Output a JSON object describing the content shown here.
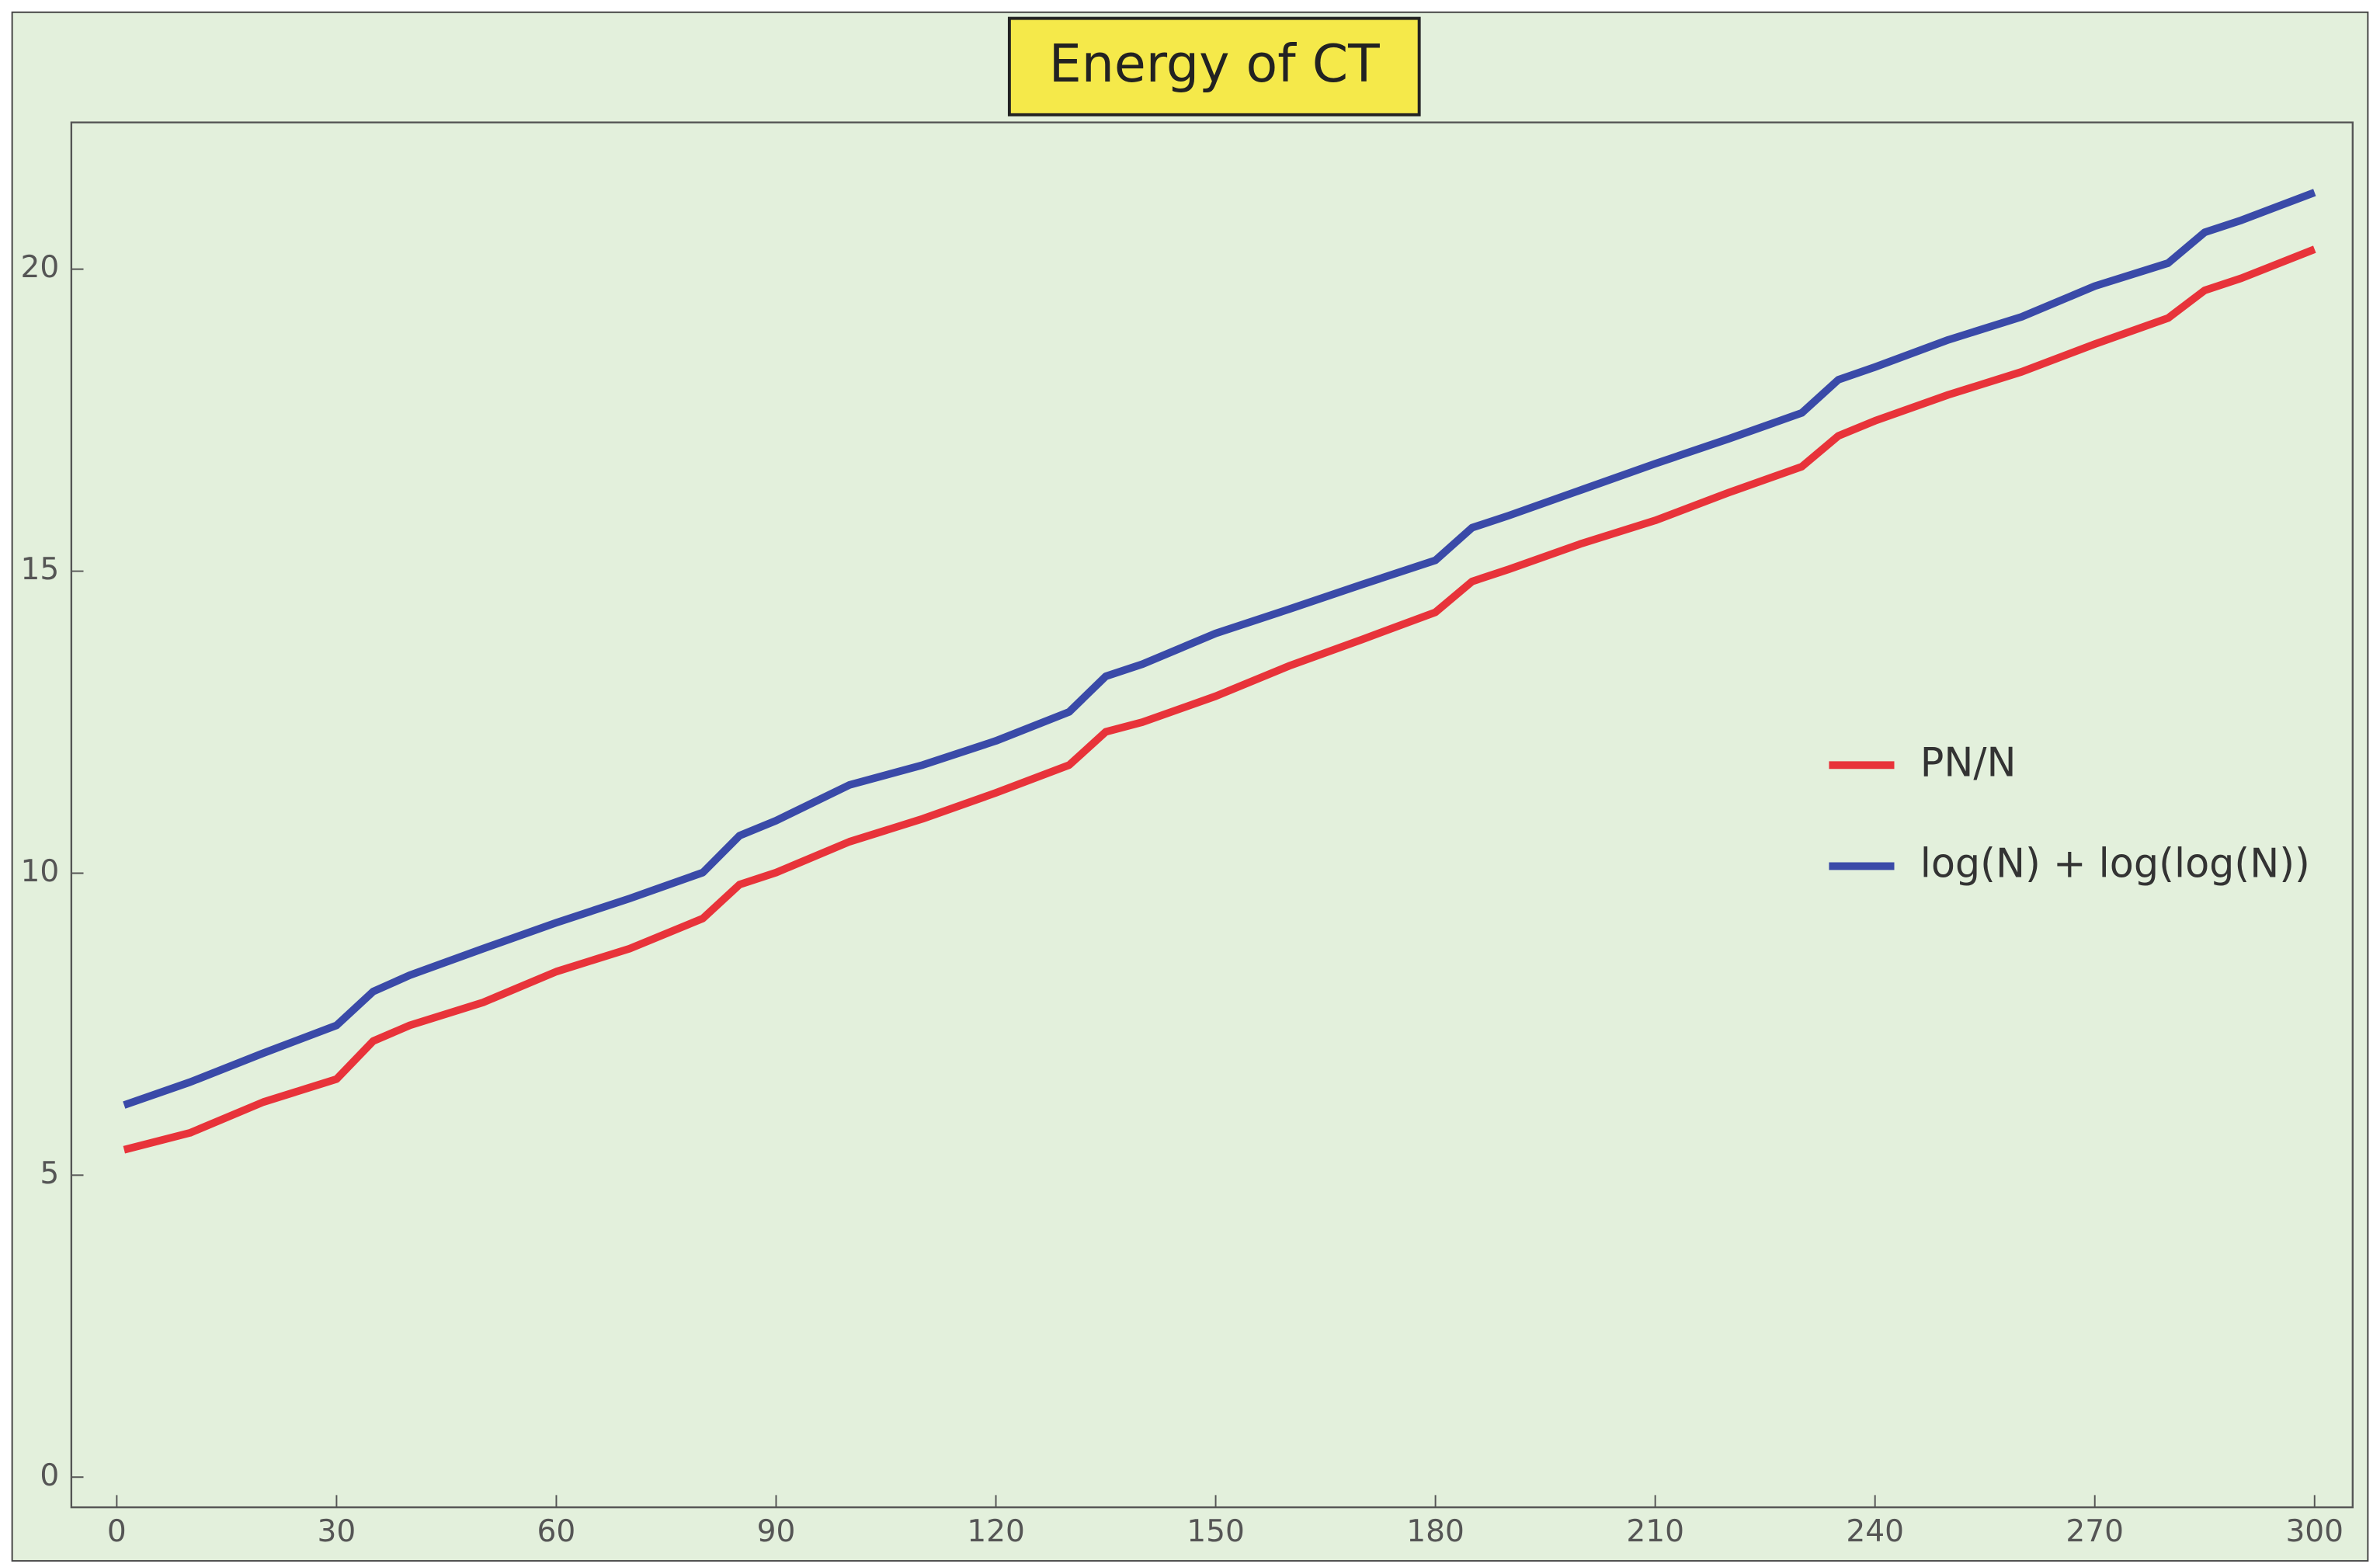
{
  "chart_data": {
    "type": "line",
    "title": "Energy of CT",
    "x": [
      1,
      10,
      20,
      30,
      35,
      40,
      50,
      60,
      70,
      80,
      85,
      90,
      100,
      110,
      120,
      130,
      135,
      140,
      150,
      160,
      170,
      180,
      185,
      190,
      200,
      210,
      220,
      230,
      235,
      240,
      250,
      260,
      270,
      280,
      285,
      290,
      300
    ],
    "series": [
      {
        "name": "PN/N",
        "color": "#e8333a",
        "values": [
          5.42,
          5.7,
          6.21,
          6.59,
          7.22,
          7.48,
          7.86,
          8.37,
          8.75,
          9.25,
          9.81,
          10.01,
          10.52,
          10.9,
          11.33,
          11.79,
          12.34,
          12.5,
          12.93,
          13.43,
          13.87,
          14.32,
          14.83,
          15.03,
          15.46,
          15.84,
          16.3,
          16.73,
          17.24,
          17.49,
          17.92,
          18.3,
          18.76,
          19.19,
          19.65,
          19.85,
          20.33
        ]
      },
      {
        "name": "log(N) + log(log(N))",
        "color": "#3a4aa8",
        "values": [
          6.16,
          6.54,
          7.02,
          7.48,
          8.04,
          8.31,
          8.75,
          9.18,
          9.58,
          10.01,
          10.62,
          10.87,
          11.46,
          11.79,
          12.19,
          12.67,
          13.26,
          13.46,
          13.97,
          14.37,
          14.78,
          15.18,
          15.72,
          15.92,
          16.35,
          16.78,
          17.19,
          17.62,
          18.17,
          18.38,
          18.83,
          19.21,
          19.72,
          20.1,
          20.61,
          20.81,
          21.27
        ]
      }
    ],
    "xlim": [
      -6.2,
      305.2
    ],
    "ylim": [
      -0.5,
      22.43
    ],
    "xticks": [
      0,
      30,
      60,
      90,
      120,
      150,
      180,
      210,
      240,
      270,
      300
    ],
    "yticks": [
      0,
      5,
      10,
      15,
      20
    ],
    "legend": "right",
    "background": "#e3f0dc"
  }
}
